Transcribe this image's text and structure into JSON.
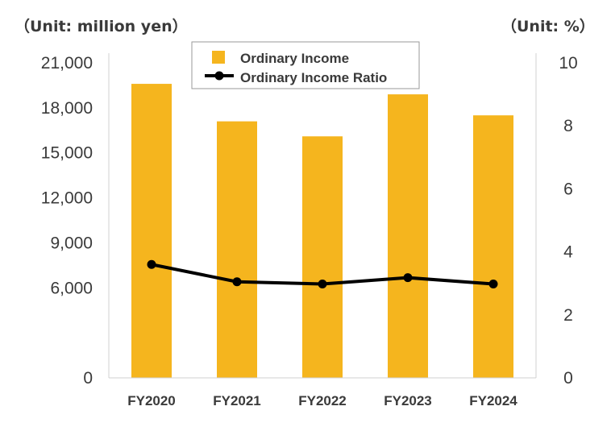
{
  "unit_left": "（Unit: million yen）",
  "unit_right": "（Unit: %）",
  "chart_data": {
    "type": "bar+line",
    "categories": [
      "FY2020",
      "FY2021",
      "FY2022",
      "FY2023",
      "FY2024"
    ],
    "series": [
      {
        "name": "Ordinary Income",
        "kind": "bar",
        "axis": "left",
        "color": "#F5B51E",
        "values": [
          19600,
          17100,
          16100,
          18900,
          17500
        ]
      },
      {
        "name": "Ordinary Income Ratio",
        "kind": "line",
        "axis": "right",
        "color": "#000000",
        "values": [
          3.6,
          3.05,
          2.98,
          3.18,
          2.98
        ]
      }
    ],
    "y_left": {
      "min": 0,
      "max": 21000,
      "ticks": [
        0,
        6000,
        9000,
        12000,
        15000,
        18000,
        21000
      ],
      "tick_labels": [
        "0",
        "6,000",
        "9,000",
        "12,000",
        "15,000",
        "18,000",
        "21,000"
      ]
    },
    "y_right": {
      "min": 0,
      "max": 10,
      "ticks": [
        0,
        2,
        4,
        6,
        8,
        10
      ],
      "tick_labels": [
        "0",
        "2",
        "4",
        "6",
        "8",
        "10"
      ]
    },
    "legend": {
      "position": "top-center",
      "entries": [
        "Ordinary Income",
        "Ordinary Income Ratio"
      ]
    },
    "grid": false
  }
}
